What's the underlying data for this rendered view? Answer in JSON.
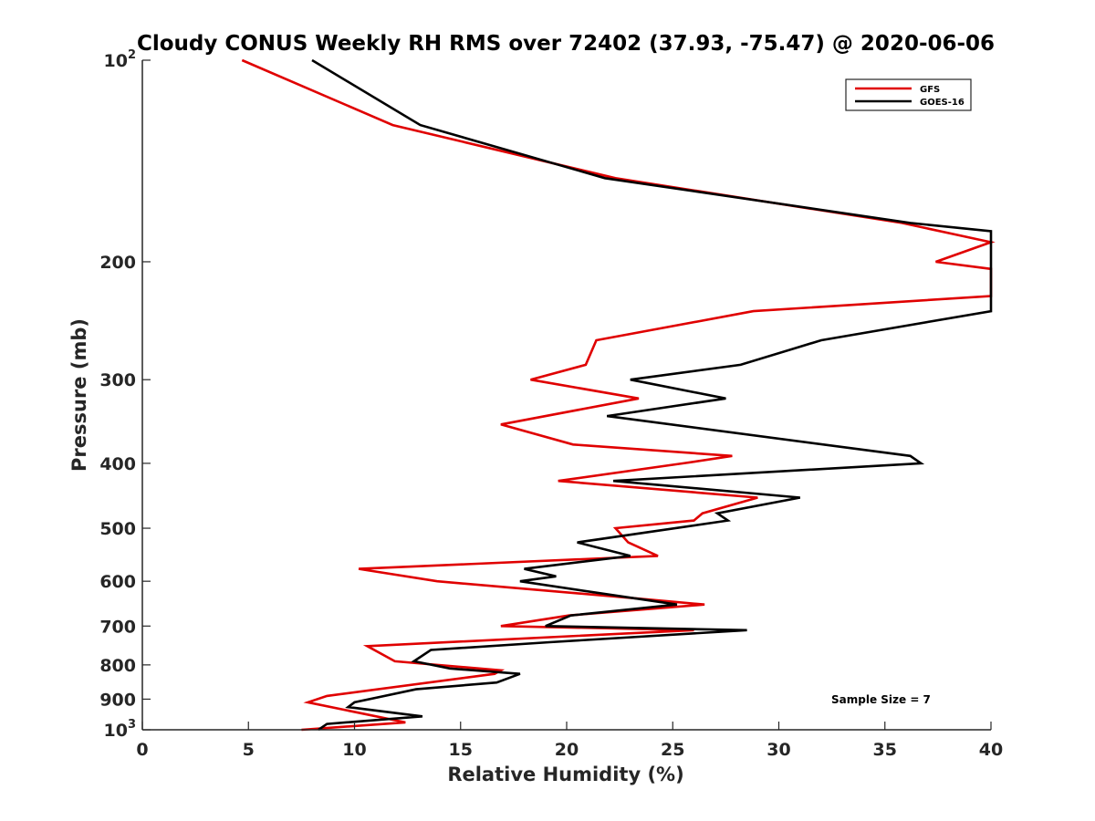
{
  "chart_data": {
    "type": "line",
    "title": "Cloudy CONUS Weekly RH RMS over 72402 (37.93, -75.47) @ 2020-06-06",
    "xlabel": "Relative Humidity (%)",
    "ylabel": "Pressure (mb)",
    "xlim": [
      0,
      40
    ],
    "ylim": [
      100,
      1000
    ],
    "y_scale": "log",
    "y_reversed": true,
    "grid": false,
    "legend_position": "top-right",
    "x_ticks": [
      0,
      5,
      10,
      15,
      20,
      25,
      30,
      35,
      40
    ],
    "x_tick_labels": [
      "0",
      "5",
      "10",
      "15",
      "20",
      "25",
      "30",
      "35",
      "40"
    ],
    "y_ticks": [
      100,
      200,
      300,
      400,
      500,
      600,
      700,
      800,
      900,
      1000
    ],
    "y_tick_labels": [
      {
        "base": "10",
        "exp": "2"
      },
      {
        "base": "200",
        "exp": ""
      },
      {
        "base": "300",
        "exp": ""
      },
      {
        "base": "400",
        "exp": ""
      },
      {
        "base": "500",
        "exp": ""
      },
      {
        "base": "600",
        "exp": ""
      },
      {
        "base": "700",
        "exp": ""
      },
      {
        "base": "800",
        "exp": ""
      },
      {
        "base": "900",
        "exp": ""
      },
      {
        "base": "10",
        "exp": "3"
      }
    ],
    "annotation": "Sample Size = 7",
    "series": [
      {
        "name": "GFS",
        "color": "#e00000",
        "points": [
          [
            4.7,
            100
          ],
          [
            11.8,
            125
          ],
          [
            22.3,
            150
          ],
          [
            35.8,
            175
          ],
          [
            40.0,
            187
          ],
          [
            37.4,
            200
          ],
          [
            40.0,
            205
          ],
          [
            40.0,
            225
          ],
          [
            28.8,
            237
          ],
          [
            21.4,
            262
          ],
          [
            20.9,
            285
          ],
          [
            18.3,
            300
          ],
          [
            23.4,
            320
          ],
          [
            16.9,
            350
          ],
          [
            20.3,
            375
          ],
          [
            27.8,
            390
          ],
          [
            25.5,
            400
          ],
          [
            19.6,
            425
          ],
          [
            29.0,
            450
          ],
          [
            26.4,
            475
          ],
          [
            26.0,
            487
          ],
          [
            22.3,
            500
          ],
          [
            22.9,
            525
          ],
          [
            24.3,
            550
          ],
          [
            10.2,
            575
          ],
          [
            13.9,
            600
          ],
          [
            22.9,
            635
          ],
          [
            26.5,
            650
          ],
          [
            20.1,
            675
          ],
          [
            16.9,
            700
          ],
          [
            26.0,
            710
          ],
          [
            10.6,
            750
          ],
          [
            11.9,
            790
          ],
          [
            16.9,
            815
          ],
          [
            16.6,
            825
          ],
          [
            8.7,
            890
          ],
          [
            7.8,
            910
          ],
          [
            12.4,
            975
          ],
          [
            7.5,
            1000
          ]
        ]
      },
      {
        "name": "GOES-16",
        "color": "#000000",
        "points": [
          [
            8.0,
            100
          ],
          [
            13.1,
            125
          ],
          [
            21.8,
            150
          ],
          [
            36.2,
            175
          ],
          [
            40.0,
            180
          ],
          [
            40.0,
            237
          ],
          [
            32.0,
            262
          ],
          [
            28.2,
            285
          ],
          [
            23.0,
            300
          ],
          [
            27.5,
            320
          ],
          [
            21.9,
            340
          ],
          [
            36.2,
            390
          ],
          [
            36.7,
            400
          ],
          [
            22.2,
            425
          ],
          [
            31.0,
            450
          ],
          [
            27.1,
            475
          ],
          [
            27.6,
            487
          ],
          [
            20.5,
            525
          ],
          [
            23.0,
            550
          ],
          [
            18.0,
            575
          ],
          [
            19.5,
            590
          ],
          [
            17.8,
            600
          ],
          [
            23.0,
            635
          ],
          [
            25.2,
            650
          ],
          [
            20.2,
            675
          ],
          [
            19.0,
            700
          ],
          [
            28.5,
            710
          ],
          [
            19.2,
            740
          ],
          [
            13.6,
            760
          ],
          [
            12.8,
            790
          ],
          [
            14.5,
            810
          ],
          [
            17.8,
            825
          ],
          [
            16.7,
            850
          ],
          [
            12.9,
            870
          ],
          [
            10.0,
            910
          ],
          [
            9.7,
            925
          ],
          [
            13.2,
            955
          ],
          [
            8.7,
            980
          ],
          [
            8.3,
            1000
          ]
        ]
      }
    ]
  }
}
